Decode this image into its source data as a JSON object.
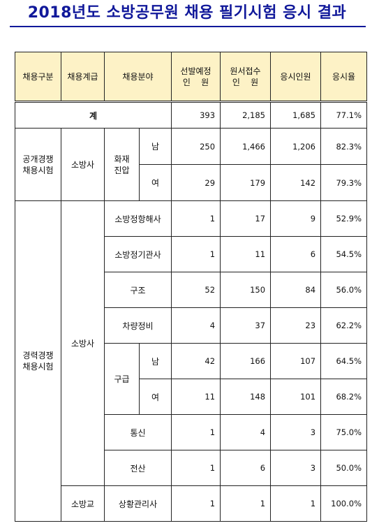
{
  "title": "2018년도 소방공무원 채용 필기시험 응시 결과",
  "headers": {
    "type": "채용구분",
    "grade": "채용계급",
    "field": "채용분야",
    "planned_l1": "선발예정",
    "planned_l2": "인    원",
    "applied_l1": "원서접수",
    "applied_l2": "인    원",
    "examinees": "응시인원",
    "rate": "응시율"
  },
  "total": {
    "label": "계",
    "planned": "393",
    "applied": "2,185",
    "examinees": "1,685",
    "rate": "77.1%"
  },
  "open": {
    "type_l1": "공개경쟁",
    "type_l2": "채용시험",
    "grade": "소방사",
    "field_l1": "화재",
    "field_l2": "진압",
    "rows": [
      {
        "gender": "남",
        "planned": "250",
        "applied": "1,466",
        "examinees": "1,206",
        "rate": "82.3%"
      },
      {
        "gender": "여",
        "planned": "29",
        "applied": "179",
        "examinees": "142",
        "rate": "79.3%"
      }
    ]
  },
  "career": {
    "type_l1": "경력경쟁",
    "type_l2": "채용시험",
    "grade_a": "소방사",
    "grade_b": "소방교",
    "rows": [
      {
        "field": "소방정항해사",
        "planned": "1",
        "applied": "17",
        "examinees": "9",
        "rate": "52.9%"
      },
      {
        "field": "소방정기관사",
        "planned": "1",
        "applied": "11",
        "examinees": "6",
        "rate": "54.5%"
      },
      {
        "field": "구조",
        "planned": "52",
        "applied": "150",
        "examinees": "84",
        "rate": "56.0%"
      },
      {
        "field": "차량정비",
        "planned": "4",
        "applied": "37",
        "examinees": "23",
        "rate": "62.2%"
      },
      {
        "field": "통신",
        "planned": "1",
        "applied": "4",
        "examinees": "3",
        "rate": "75.0%"
      },
      {
        "field": "전산",
        "planned": "1",
        "applied": "6",
        "examinees": "3",
        "rate": "50.0%"
      },
      {
        "field": "상황관리사",
        "planned": "1",
        "applied": "1",
        "examinees": "1",
        "rate": "100.0%"
      }
    ],
    "emt": {
      "field": "구급",
      "rows": [
        {
          "gender": "남",
          "planned": "42",
          "applied": "166",
          "examinees": "107",
          "rate": "64.5%"
        },
        {
          "gender": "여",
          "planned": "11",
          "applied": "148",
          "examinees": "101",
          "rate": "68.2%"
        }
      ]
    }
  }
}
